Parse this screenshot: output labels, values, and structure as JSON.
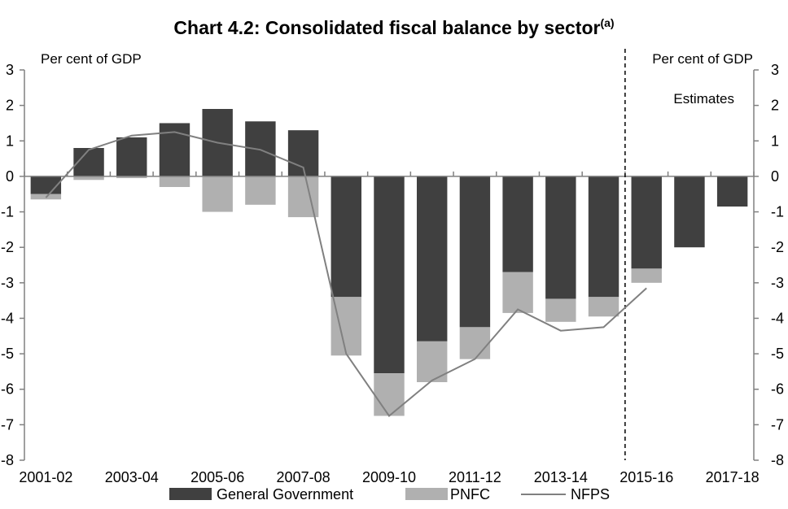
{
  "title": "Chart 4.2: Consolidated fiscal balance by sector",
  "title_superscript": "(a)",
  "y_unit_left": "Per cent of GDP",
  "y_unit_right": "Per cent of GDP",
  "annotation": "Estimates",
  "chart_data": {
    "type": "bar",
    "stacked": true,
    "categories": [
      "2001-02",
      "2002-03",
      "2003-04",
      "2004-05",
      "2005-06",
      "2006-07",
      "2007-08",
      "2008-09",
      "2009-10",
      "2010-11",
      "2011-12",
      "2012-13",
      "2013-14",
      "2014-15",
      "2015-16",
      "2016-17",
      "2017-18"
    ],
    "x_tick_labels": [
      "2001-02",
      "2003-04",
      "2005-06",
      "2007-08",
      "2009-10",
      "2011-12",
      "2013-14",
      "2015-16",
      "2017-18"
    ],
    "series": [
      {
        "name": "General Government",
        "type": "bar",
        "color": "#404040",
        "values": [
          -0.5,
          0.8,
          1.1,
          1.5,
          1.9,
          1.55,
          1.3,
          -3.4,
          -5.55,
          -4.65,
          -4.25,
          -2.7,
          -3.45,
          -3.4,
          -2.6,
          -2.0,
          -0.85
        ]
      },
      {
        "name": "PNFC",
        "type": "bar",
        "color": "#b0b0b0",
        "values": [
          -0.15,
          -0.1,
          -0.05,
          -0.3,
          -1.0,
          -0.8,
          -1.15,
          -1.65,
          -1.2,
          -1.15,
          -0.9,
          -1.15,
          -0.65,
          -0.55,
          -0.4,
          null,
          null
        ]
      },
      {
        "name": "NFPS",
        "type": "line",
        "color": "#808080",
        "values": [
          -0.6,
          0.75,
          1.15,
          1.25,
          0.95,
          0.75,
          0.25,
          -5.0,
          -6.75,
          -5.75,
          -5.15,
          -3.75,
          -4.35,
          -4.25,
          -3.15,
          null,
          null
        ]
      }
    ],
    "ylim": [
      -8,
      3
    ],
    "yticks": [
      -8,
      -7,
      -6,
      -5,
      -4,
      -3,
      -2,
      -1,
      0,
      1,
      2,
      3
    ],
    "estimates_divider_between": [
      "2014-15",
      "2015-16"
    ],
    "legend_position": "bottom",
    "grid": false
  },
  "legend": [
    {
      "label": "General Government",
      "kind": "bar",
      "color": "#404040"
    },
    {
      "label": "PNFC",
      "kind": "bar",
      "color": "#b0b0b0"
    },
    {
      "label": "NFPS",
      "kind": "line",
      "color": "#808080"
    }
  ]
}
